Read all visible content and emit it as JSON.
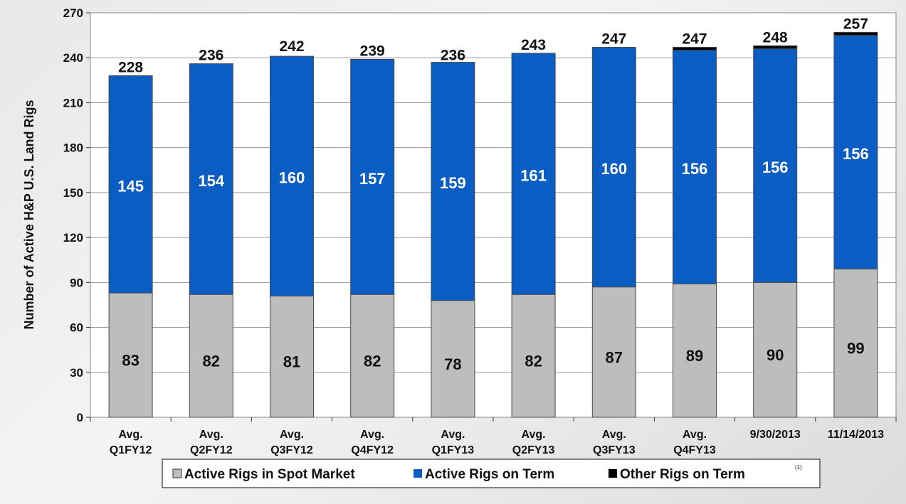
{
  "chart_data": {
    "type": "bar",
    "stacked": true,
    "ylabel": "Number of Active H&P U.S. Land Rigs",
    "ylim": [
      0,
      270
    ],
    "yticks": [
      0,
      30,
      60,
      90,
      120,
      150,
      180,
      210,
      240,
      270
    ],
    "grid": true,
    "legend_position": "bottom",
    "categories": [
      [
        "Avg.",
        "Q1FY12"
      ],
      [
        "Avg.",
        "Q2FY12"
      ],
      [
        "Avg.",
        "Q3FY12"
      ],
      [
        "Avg.",
        "Q4FY12"
      ],
      [
        "Avg.",
        "Q1FY13"
      ],
      [
        "Avg.",
        "Q2FY13"
      ],
      [
        "Avg.",
        "Q3FY13"
      ],
      [
        "Avg.",
        "Q4FY13"
      ],
      [
        "9/30/2013"
      ],
      [
        "11/14/2013"
      ]
    ],
    "series": [
      {
        "name": "Active Rigs in Spot Market",
        "color": "#bdbdbd",
        "values": [
          83,
          82,
          81,
          82,
          78,
          82,
          87,
          89,
          90,
          99
        ]
      },
      {
        "name": "Active Rigs on Term",
        "color": "#0a5dc2",
        "values": [
          145,
          154,
          160,
          157,
          159,
          161,
          160,
          156,
          156,
          156
        ]
      },
      {
        "name": "Other Rigs on Term",
        "color": "#000000",
        "values": [
          0,
          0,
          0,
          0,
          0,
          0,
          0,
          2,
          2,
          2
        ]
      }
    ],
    "totals": [
      228,
      236,
      242,
      239,
      236,
      243,
      247,
      247,
      248,
      257
    ],
    "legend_footnote": "(1)"
  }
}
